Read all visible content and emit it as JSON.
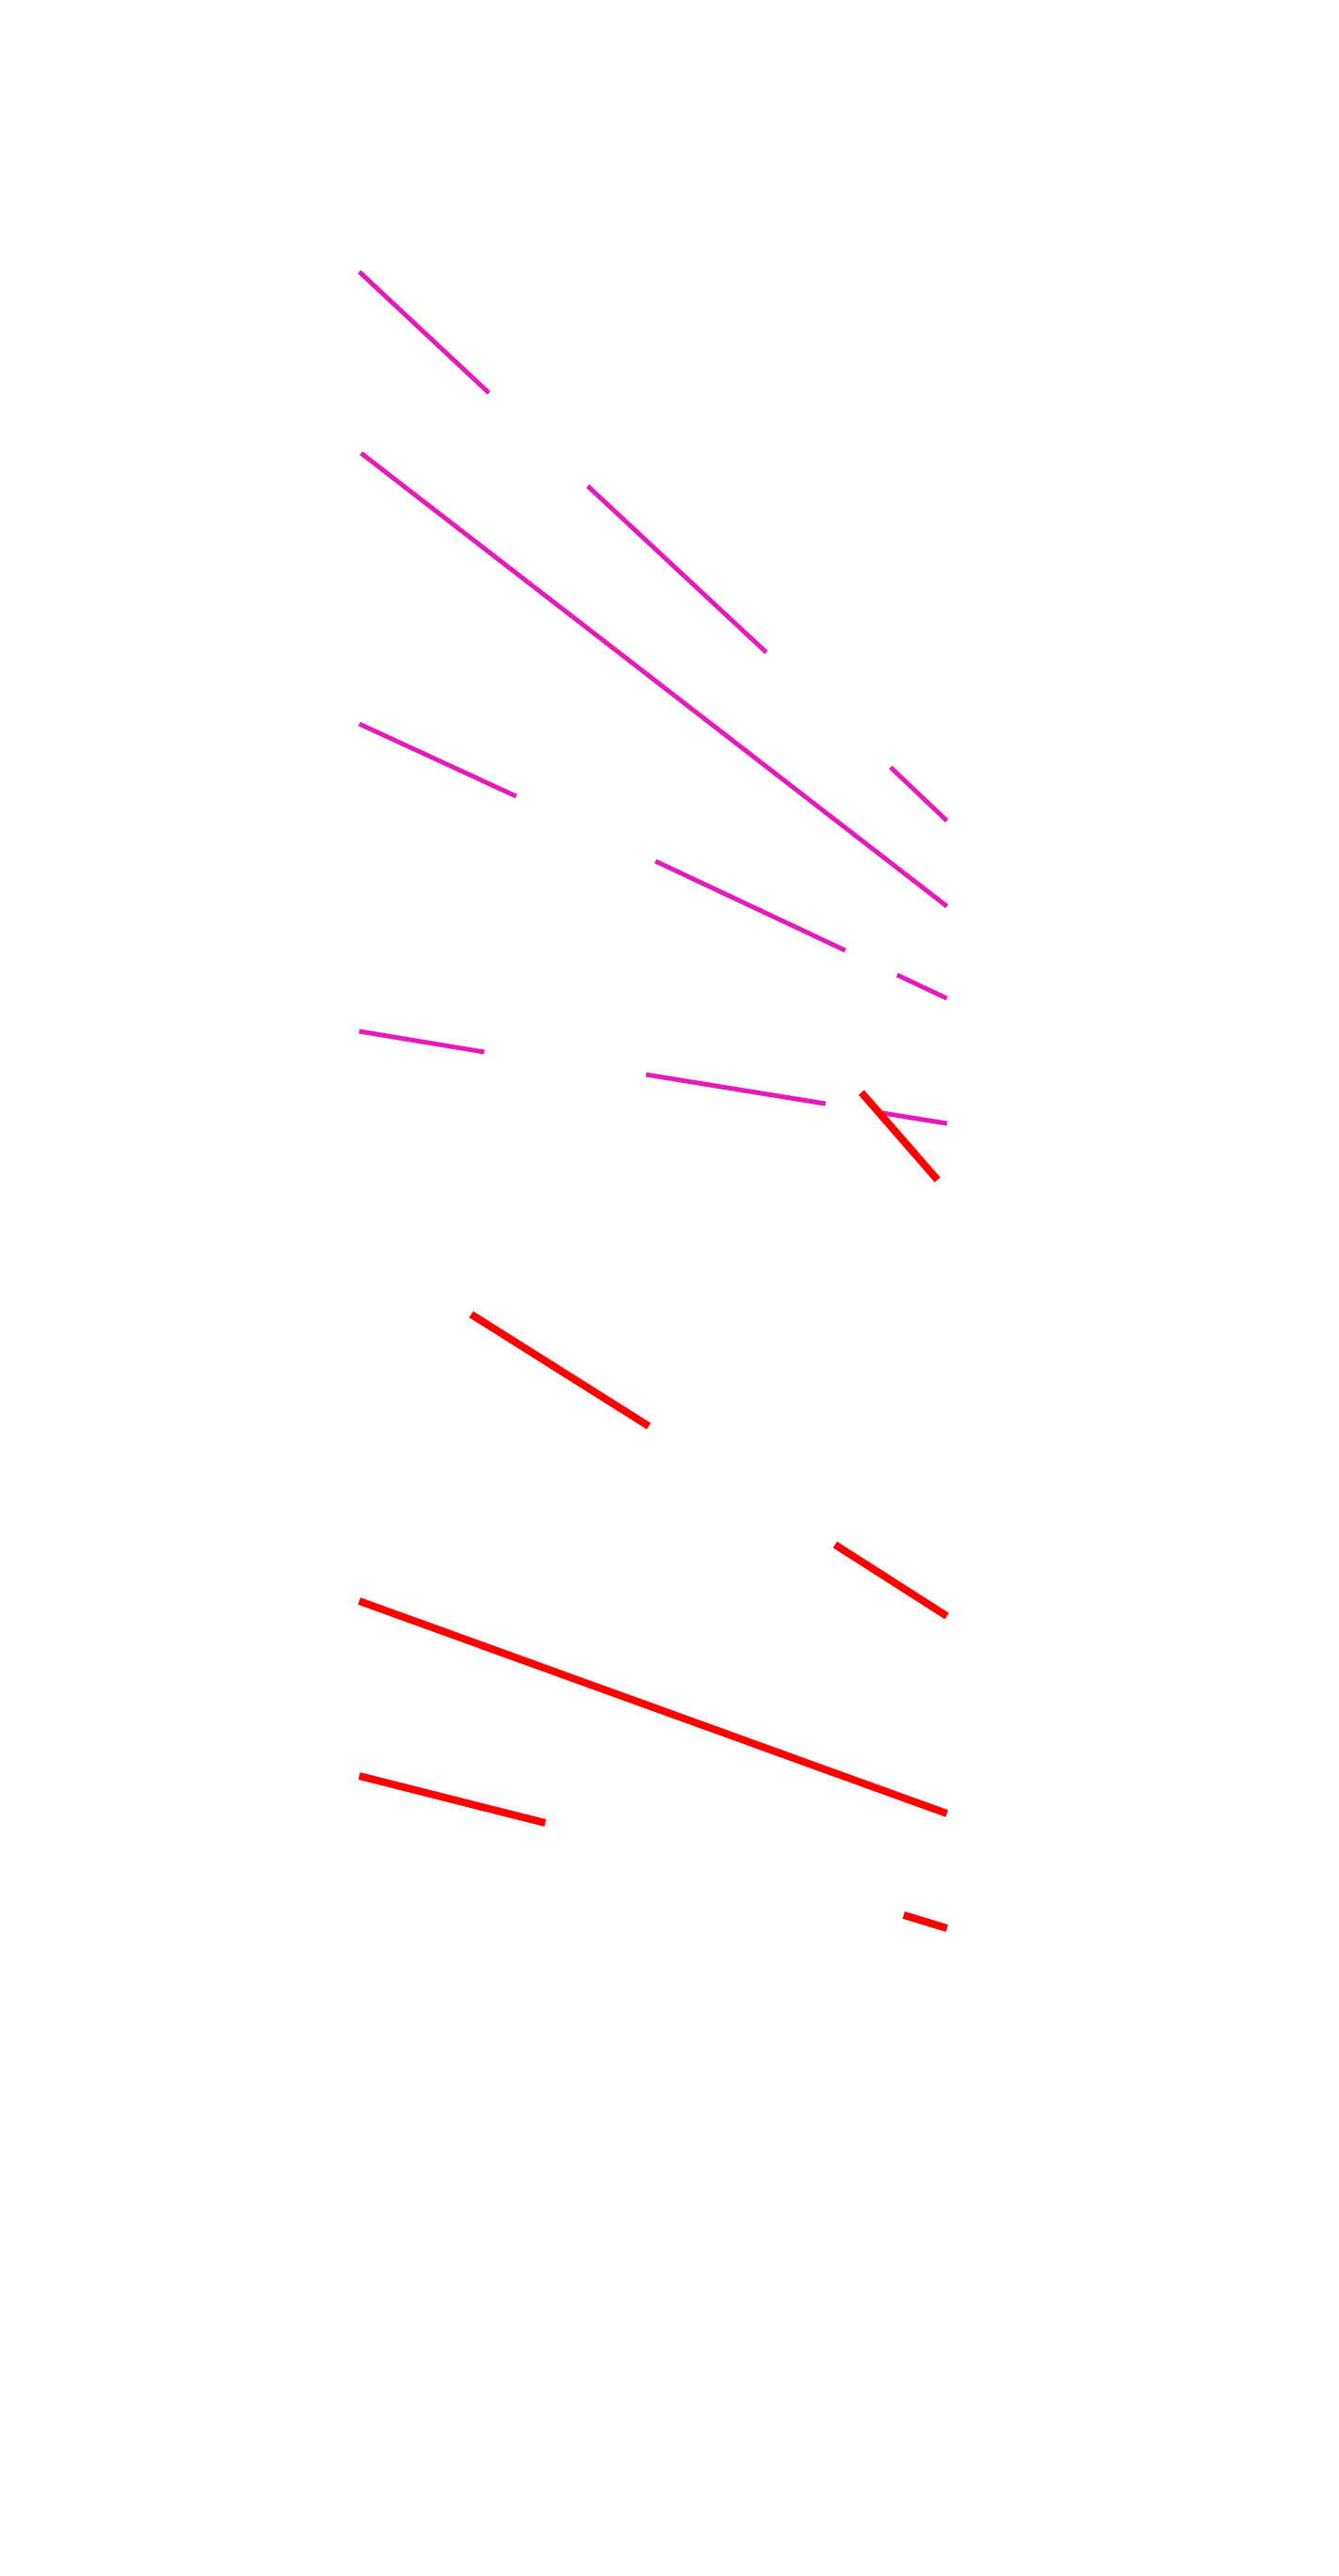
{
  "colors": {
    "background": "#ffffff",
    "magenta_strokes": "#e61ab8",
    "red_strokes": "#ff0000"
  }
}
